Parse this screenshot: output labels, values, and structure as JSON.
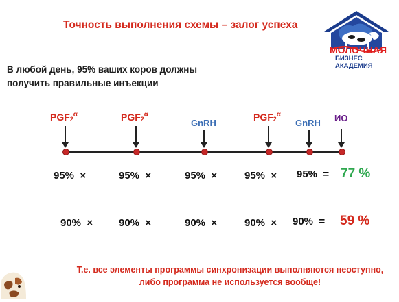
{
  "title": "Точность выполнения схемы – залог успеха",
  "intro": {
    "line1": "В любой день, 95% ваших коров должны",
    "line2": "получить правильные инъекции"
  },
  "logo": {
    "line1": "Молочная",
    "line2": "Бизнес",
    "line3": "Академия"
  },
  "timeline": {
    "events": [
      {
        "label": "PGF",
        "sub": "2",
        "sup": "α",
        "kind": "pgf"
      },
      {
        "label": "PGF",
        "sub": "2",
        "sup": "α",
        "kind": "pgf"
      },
      {
        "label": "GnRH",
        "kind": "gnrh"
      },
      {
        "label": "PGF",
        "sub": "2",
        "sup": "α",
        "kind": "pgf"
      },
      {
        "label": "GnRH",
        "kind": "gnrh"
      },
      {
        "label": "ИО",
        "kind": "io"
      }
    ]
  },
  "row1": {
    "items": [
      "95%",
      "95%",
      "95%",
      "95%",
      "95%"
    ],
    "times": "×",
    "equals": "=",
    "result": "77 %",
    "result_color": "#2fa84f"
  },
  "row2": {
    "items": [
      "90%",
      "90%",
      "90%",
      "90%",
      "90%"
    ],
    "times": "×",
    "equals": "=",
    "result": "59 %",
    "result_color": "#d42a1e"
  },
  "footer": {
    "line1": "Т.е. все элементы программы синхронизации выполняются неоступно,",
    "line2": "либо программа не используется вообще!"
  }
}
